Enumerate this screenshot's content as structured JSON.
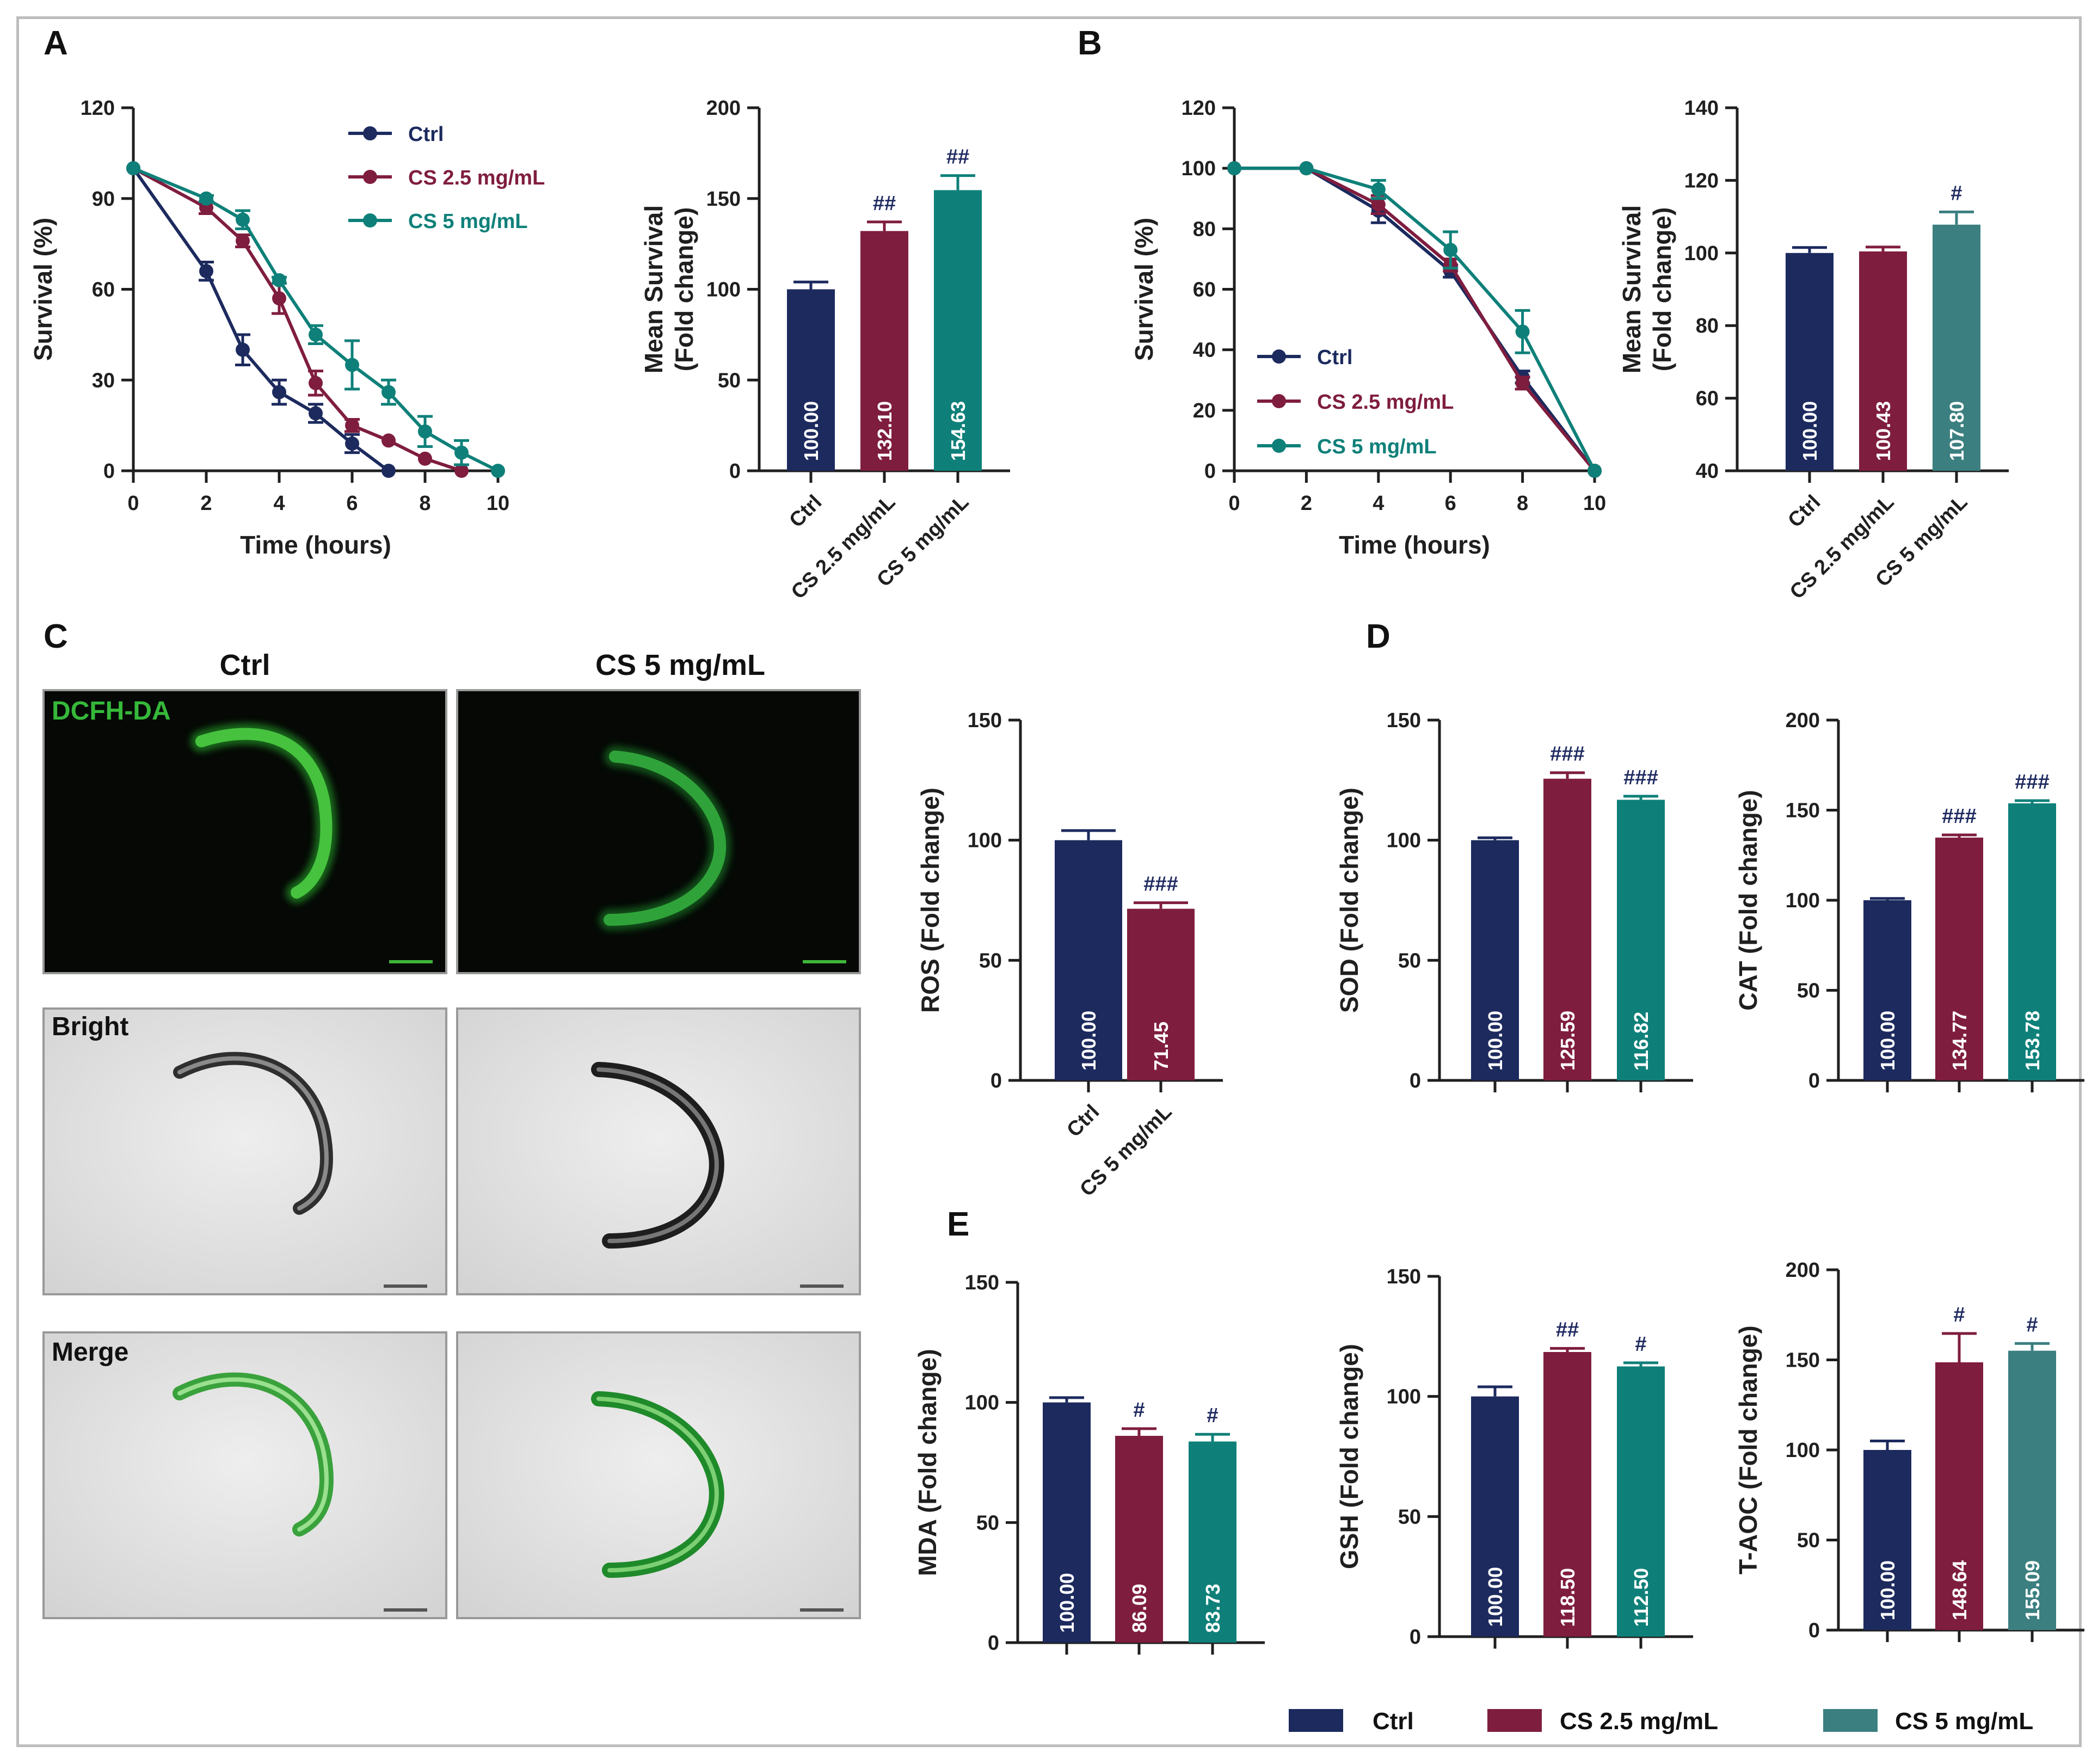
{
  "colors": {
    "ctrl": "#1c2a5e",
    "cs25": "#7f1d3f",
    "cs5": "#0e8079",
    "cs5b": "#3c7f80",
    "text": "#1f1f1f"
  },
  "panels": {
    "A": "A",
    "B": "B",
    "C": "C",
    "D": "D",
    "E": "E"
  },
  "images": {
    "col_ctrl": "Ctrl",
    "col_cs5": "CS 5 mg/mL",
    "row_dcfh": "DCFH-DA",
    "row_bright": "Bright",
    "row_merge": "Merge"
  },
  "bottom_legend": [
    "Ctrl",
    "CS 2.5 mg/mL",
    "CS 5 mg/mL"
  ],
  "chart_data": [
    {
      "id": "A_line",
      "type": "line",
      "xlabel": "Time (hours)",
      "ylabel": "Survival (%)",
      "xlim": [
        0,
        10
      ],
      "ylim": [
        0,
        120
      ],
      "xticks": [
        "0",
        "2",
        "4",
        "6",
        "8",
        "10"
      ],
      "yticks": [
        "0",
        "30",
        "60",
        "90",
        "120"
      ],
      "legend_position": "top-right",
      "series": [
        {
          "name": "Ctrl",
          "x": [
            0,
            2,
            3,
            4,
            5,
            6,
            7
          ],
          "values": [
            100,
            66,
            40,
            26,
            19,
            9,
            0
          ],
          "err": [
            0,
            3,
            5,
            4,
            3,
            3,
            0
          ]
        },
        {
          "name": "CS 2.5 mg/mL",
          "x": [
            0,
            2,
            3,
            4,
            5,
            6,
            7,
            8,
            9
          ],
          "values": [
            100,
            87,
            76,
            57,
            29,
            15,
            10,
            4,
            0
          ],
          "err": [
            0,
            2,
            2,
            5,
            4,
            2,
            0,
            0,
            0
          ]
        },
        {
          "name": "CS 5 mg/mL",
          "x": [
            0,
            2,
            3,
            4,
            5,
            6,
            7,
            8,
            9,
            10
          ],
          "values": [
            100,
            90,
            83,
            63,
            45,
            35,
            26,
            13,
            6,
            0
          ],
          "err": [
            0,
            1,
            3,
            1,
            3,
            8,
            4,
            5,
            4,
            0
          ]
        }
      ]
    },
    {
      "id": "A_bar",
      "type": "bar",
      "ylabel": "Mean Survival\n(Fold change)",
      "ylim": [
        0,
        200
      ],
      "yticks": [
        "0",
        "50",
        "100",
        "150",
        "200"
      ],
      "categories": [
        "Ctrl",
        "CS 2.5 mg/mL",
        "CS 5 mg/mL"
      ],
      "values": [
        100.0,
        132.1,
        154.63
      ],
      "labels": [
        "100.00",
        "132.10",
        "154.63"
      ],
      "err": [
        4,
        5,
        8
      ],
      "sig": [
        "",
        "##",
        "##"
      ]
    },
    {
      "id": "B_line",
      "type": "line",
      "xlabel": "Time (hours)",
      "ylabel": "Survival (%)",
      "xlim": [
        0,
        10
      ],
      "ylim": [
        0,
        120
      ],
      "xticks": [
        "0",
        "2",
        "4",
        "6",
        "8",
        "10"
      ],
      "yticks": [
        "0",
        "20",
        "40",
        "60",
        "80",
        "100",
        "120"
      ],
      "legend_position": "bottom-left",
      "series": [
        {
          "name": "Ctrl",
          "x": [
            0,
            2,
            4,
            6,
            8,
            10
          ],
          "values": [
            100,
            100,
            86,
            66,
            31,
            0
          ],
          "err": [
            0,
            0,
            4,
            2,
            2,
            0
          ]
        },
        {
          "name": "CS 2.5 mg/mL",
          "x": [
            0,
            2,
            4,
            6,
            8,
            10
          ],
          "values": [
            100,
            100,
            88,
            68,
            29,
            0
          ],
          "err": [
            0,
            0,
            3,
            2,
            2,
            0
          ]
        },
        {
          "name": "CS 5 mg/mL",
          "x": [
            0,
            2,
            4,
            6,
            8,
            10
          ],
          "values": [
            100,
            100,
            93,
            73,
            46,
            0
          ],
          "err": [
            0,
            0,
            3,
            6,
            7,
            0
          ]
        }
      ]
    },
    {
      "id": "B_bar",
      "type": "bar",
      "ylabel": "Mean Survival\n(Fold change)",
      "ylim": [
        40,
        140
      ],
      "yticks": [
        "40",
        "60",
        "80",
        "100",
        "120",
        "140"
      ],
      "categories": [
        "Ctrl",
        "CS 2.5 mg/mL",
        "CS 5 mg/mL"
      ],
      "values": [
        100.0,
        100.43,
        107.8
      ],
      "labels": [
        "100.00",
        "100.43",
        "107.80"
      ],
      "err": [
        1.5,
        1.2,
        3.5
      ],
      "sig": [
        "",
        "",
        "#"
      ]
    },
    {
      "id": "C_ros",
      "type": "bar",
      "ylabel": "ROS (Fold change)",
      "ylim": [
        0,
        150
      ],
      "yticks": [
        "0",
        "50",
        "100",
        "150"
      ],
      "categories": [
        "Ctrl",
        "CS 5 mg/mL"
      ],
      "values": [
        100.0,
        71.45
      ],
      "labels": [
        "100.00",
        "71.45"
      ],
      "err": [
        4,
        2.5
      ],
      "sig": [
        "",
        "###"
      ]
    },
    {
      "id": "D_sod",
      "type": "bar",
      "ylabel": "SOD (Fold change)",
      "ylim": [
        0,
        150
      ],
      "yticks": [
        "0",
        "50",
        "100",
        "150"
      ],
      "categories": [
        "Ctrl",
        "CS 2.5 mg/mL",
        "CS 5 mg/mL"
      ],
      "values": [
        100.0,
        125.59,
        116.82
      ],
      "labels": [
        "100.00",
        "125.59",
        "116.82"
      ],
      "err": [
        1,
        2.5,
        1.5
      ],
      "sig": [
        "",
        "###",
        "###"
      ]
    },
    {
      "id": "D_cat",
      "type": "bar",
      "ylabel": "CAT (Fold change)",
      "ylim": [
        0,
        200
      ],
      "yticks": [
        "0",
        "50",
        "100",
        "150",
        "200"
      ],
      "categories": [
        "Ctrl",
        "CS 2.5 mg/mL",
        "CS 5 mg/mL"
      ],
      "values": [
        100.0,
        134.77,
        153.78
      ],
      "labels": [
        "100.00",
        "134.77",
        "153.78"
      ],
      "err": [
        1,
        1.5,
        1.5
      ],
      "sig": [
        "",
        "###",
        "###"
      ]
    },
    {
      "id": "E_mda",
      "type": "bar",
      "ylabel": "MDA (Fold change)",
      "ylim": [
        0,
        150
      ],
      "yticks": [
        "0",
        "50",
        "100",
        "150"
      ],
      "categories": [
        "Ctrl",
        "CS 2.5 mg/mL",
        "CS 5 mg/mL"
      ],
      "values": [
        100.0,
        86.09,
        83.73
      ],
      "labels": [
        "100.00",
        "86.09",
        "83.73"
      ],
      "err": [
        2,
        3,
        3
      ],
      "sig": [
        "",
        "#",
        "#"
      ]
    },
    {
      "id": "E_gsh",
      "type": "bar",
      "ylabel": "GSH (Fold change)",
      "ylim": [
        0,
        150
      ],
      "yticks": [
        "0",
        "50",
        "100",
        "150"
      ],
      "categories": [
        "Ctrl",
        "CS 2.5 mg/mL",
        "CS 5 mg/mL"
      ],
      "values": [
        100.0,
        118.5,
        112.5
      ],
      "labels": [
        "100.00",
        "118.50",
        "112.50"
      ],
      "err": [
        4,
        1.5,
        1.5
      ],
      "sig": [
        "",
        "##",
        "#"
      ]
    },
    {
      "id": "E_taoc",
      "type": "bar",
      "ylabel": "T-AOC (Fold change)",
      "ylim": [
        0,
        200
      ],
      "yticks": [
        "0",
        "50",
        "100",
        "150",
        "200"
      ],
      "categories": [
        "Ctrl",
        "CS 2.5 mg/mL",
        "CS 5 mg/mL"
      ],
      "values": [
        100.0,
        148.64,
        155.09
      ],
      "labels": [
        "100.00",
        "148.64",
        "155.09"
      ],
      "err": [
        5,
        16,
        4
      ],
      "sig": [
        "",
        "#",
        "#"
      ]
    }
  ]
}
